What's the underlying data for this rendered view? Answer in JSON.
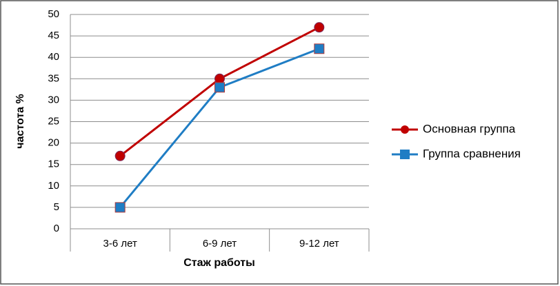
{
  "chart_data": {
    "type": "line",
    "categories": [
      "3-6 лет",
      "6-9 лет",
      "9-12 лет"
    ],
    "series": [
      {
        "name": "Основная группа",
        "color": "#c00000",
        "marker": "circle",
        "values": [
          17,
          35,
          47
        ]
      },
      {
        "name": "Группа сравнения",
        "color": "#1f7dc4",
        "marker": "square",
        "values": [
          5,
          33,
          42
        ]
      }
    ],
    "ylim": [
      0,
      50
    ],
    "yticks": [
      0,
      5,
      10,
      15,
      20,
      25,
      30,
      35,
      40,
      45,
      50
    ],
    "ylabel": "частота %",
    "xlabel": "Стаж работы",
    "grid": true,
    "legend": "right"
  }
}
